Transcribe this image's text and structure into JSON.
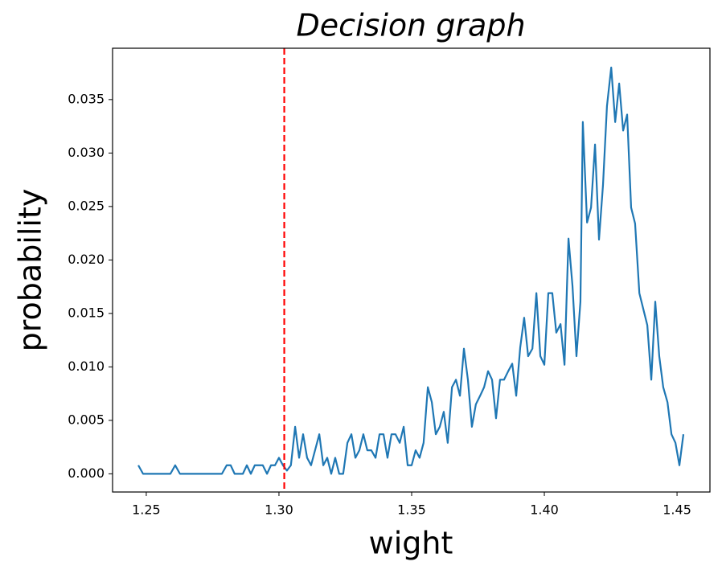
{
  "chart_data": {
    "type": "line",
    "title": "Decision graph",
    "x_label": "wight",
    "y_label": "probability",
    "x": [
      1.247,
      1.2488,
      1.2591,
      1.2609,
      1.2627,
      1.2785,
      1.2803,
      1.2818,
      1.2833,
      1.2864,
      1.2879,
      1.2894,
      1.2909,
      1.2939,
      1.2955,
      1.297,
      1.2985,
      1.3,
      1.3015,
      1.303,
      1.3045,
      1.3061,
      1.3076,
      1.3091,
      1.3106,
      1.3121,
      1.3136,
      1.3152,
      1.3167,
      1.3182,
      1.3197,
      1.3212,
      1.3227,
      1.3242,
      1.3258,
      1.3273,
      1.3288,
      1.3303,
      1.3318,
      1.3333,
      1.3348,
      1.3364,
      1.3379,
      1.3394,
      1.3409,
      1.3424,
      1.3439,
      1.3455,
      1.347,
      1.3485,
      1.35,
      1.3515,
      1.353,
      1.3545,
      1.3561,
      1.3576,
      1.3591,
      1.3606,
      1.3621,
      1.3636,
      1.3652,
      1.3667,
      1.3682,
      1.3697,
      1.3712,
      1.3727,
      1.3742,
      1.3758,
      1.3773,
      1.3788,
      1.3803,
      1.3818,
      1.3833,
      1.3848,
      1.3864,
      1.3879,
      1.3894,
      1.3909,
      1.3924,
      1.3939,
      1.3955,
      1.397,
      1.3985,
      1.4,
      1.4015,
      1.403,
      1.4045,
      1.4061,
      1.4076,
      1.4091,
      1.4106,
      1.4121,
      1.4136,
      1.4145,
      1.4161,
      1.4176,
      1.4191,
      1.4206,
      1.4221,
      1.4236,
      1.4252,
      1.4267,
      1.4282,
      1.4297,
      1.4312,
      1.4327,
      1.4342,
      1.4358,
      1.4373,
      1.4388,
      1.4403,
      1.4418,
      1.4433,
      1.4448,
      1.4464,
      1.4479,
      1.4494,
      1.4509,
      1.4524
    ],
    "series": [
      {
        "color": "#1f77b4",
        "values": [
          0.0008,
          0,
          0,
          0.0008,
          0,
          0,
          0.0008,
          0.0008,
          0,
          0,
          0.0008,
          0,
          0.0008,
          0.0008,
          0,
          0.0008,
          0.0008,
          0.0015,
          0.0008,
          0.0003,
          0.0008,
          0.0044,
          0.0015,
          0.0037,
          0.0015,
          0.0008,
          0.0022,
          0.0037,
          0.0008,
          0.0015,
          0,
          0.0015,
          0,
          0,
          0.0029,
          0.0037,
          0.0015,
          0.0022,
          0.0037,
          0.0022,
          0.0022,
          0.0015,
          0.0037,
          0.0037,
          0.0015,
          0.0037,
          0.0037,
          0.0029,
          0.0044,
          0.0008,
          0.0008,
          0.0022,
          0.0015,
          0.0029,
          0.0081,
          0.0067,
          0.0037,
          0.0044,
          0.0058,
          0.0029,
          0.0081,
          0.0088,
          0.0073,
          0.0117,
          0.0088,
          0.0044,
          0.0065,
          0.0073,
          0.0081,
          0.0096,
          0.0088,
          0.0052,
          0.0088,
          0.0088,
          0.0096,
          0.0103,
          0.0073,
          0.0118,
          0.0146,
          0.011,
          0.0117,
          0.0169,
          0.011,
          0.0102,
          0.0169,
          0.0169,
          0.0132,
          0.014,
          0.0102,
          0.022,
          0.0176,
          0.011,
          0.0161,
          0.0329,
          0.0235,
          0.0249,
          0.0308,
          0.0219,
          0.027,
          0.0344,
          0.038,
          0.0329,
          0.0365,
          0.0321,
          0.0336,
          0.0249,
          0.0234,
          0.0169,
          0.0154,
          0.0139,
          0.0088,
          0.0161,
          0.011,
          0.0081,
          0.0067,
          0.0037,
          0.0029,
          0.0008,
          0.0037
        ]
      }
    ],
    "vline": {
      "x": 1.302,
      "color": "#ff0000",
      "dashed": true
    },
    "xlim": [
      1.2373,
      1.4624
    ],
    "ylim": [
      -0.0017,
      0.0398
    ],
    "xticks": [
      1.25,
      {
        "value": 1.3,
        "label": "1.30"
      },
      1.35,
      {
        "value": 1.4,
        "label": "1.40"
      },
      1.45
    ],
    "yticks": [
      {
        "value": 0,
        "label": "0.000"
      },
      {
        "value": 0.005,
        "label": "0.005"
      },
      {
        "value": 0.01,
        "label": "0.010"
      },
      {
        "value": 0.015,
        "label": "0.015"
      },
      {
        "value": 0.02,
        "label": "0.020"
      },
      {
        "value": 0.025,
        "label": "0.025"
      },
      {
        "value": 0.03,
        "label": "0.030"
      },
      {
        "value": 0.035,
        "label": "0.035"
      }
    ],
    "grid": false
  }
}
